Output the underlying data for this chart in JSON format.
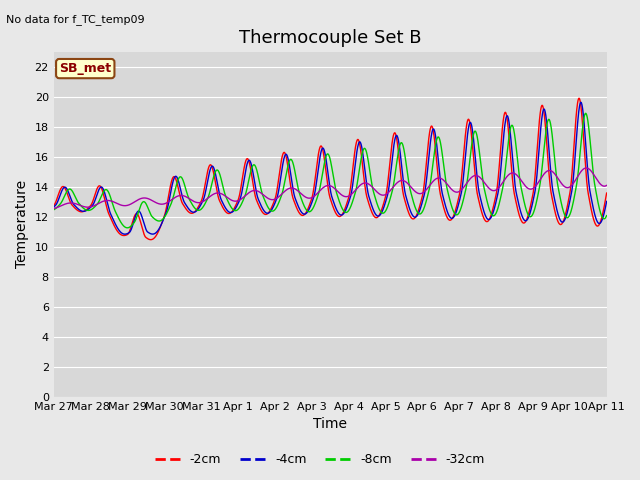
{
  "title": "Thermocouple Set B",
  "subtitle": "No data for f_TC_temp09",
  "xlabel": "Time",
  "ylabel": "Temperature",
  "ylim": [
    0,
    23
  ],
  "yticks": [
    0,
    2,
    4,
    6,
    8,
    10,
    12,
    14,
    16,
    18,
    20,
    22
  ],
  "xtick_labels": [
    "Mar 27",
    "Mar 28",
    "Mar 29",
    "Mar 30",
    "Mar 31",
    "Apr 1",
    "Apr 2",
    "Apr 3",
    "Apr 4",
    "Apr 5",
    "Apr 6",
    "Apr 7",
    "Apr 8",
    "Apr 9",
    "Apr 10",
    "Apr 11"
  ],
  "line_colors": [
    "#ff0000",
    "#0000cc",
    "#00cc00",
    "#aa00aa"
  ],
  "line_labels": [
    "-2cm",
    "-4cm",
    "-8cm",
    "-32cm"
  ],
  "legend_label": "SB_met",
  "legend_box_color": "#ffffcc",
  "legend_box_border": "#8B4513",
  "legend_text_color": "#8B0000",
  "background_color": "#d8d8d8",
  "plot_bg_color": "#e8e8e8",
  "grid_color": "#ffffff",
  "title_fontsize": 13,
  "axis_label_fontsize": 10,
  "tick_fontsize": 8
}
